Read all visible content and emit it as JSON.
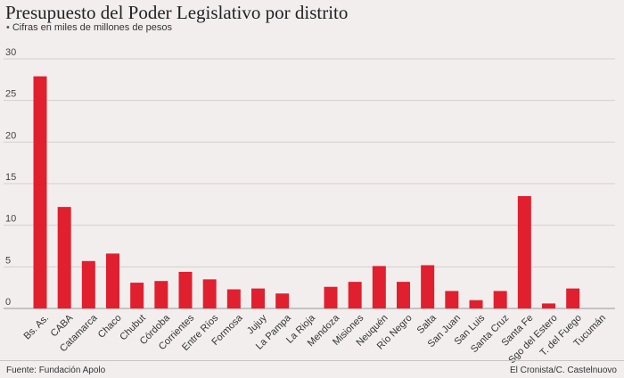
{
  "header": {
    "title": "Presupuesto del Poder Legislativo por distrito",
    "subtitle": "Cifras en miles de millones de pesos"
  },
  "footer": {
    "source": "Fuente: Fundación Apolo",
    "credit": "El Cronista/C. Castelnuovo"
  },
  "colors": {
    "bar": "#e0202f",
    "background": "#f3eeee",
    "grid": "#d4cfcf",
    "axis": "#9a9595"
  },
  "chart_data": {
    "type": "bar",
    "ylim": [
      0,
      30
    ],
    "yticks": [
      0,
      5,
      10,
      15,
      20,
      25,
      30
    ],
    "grid": true,
    "xlabel": "",
    "ylabel": "",
    "categories": [
      "Bs. As.",
      "CABA",
      "Catamarca",
      "Chaco",
      "Chubut",
      "Córdoba",
      "Corrientes",
      "Entre Ríos",
      "Formosa",
      "Jujuy",
      "La Pampa",
      "La Rioja",
      "Mendoza",
      "Misiones",
      "Neuquén",
      "Río Negro",
      "Salta",
      "San Juan",
      "San Luis",
      "Santa Cruz",
      "Santa Fe",
      "Sgo del Estero",
      "T. del Fuego",
      "Tucumán"
    ],
    "values": [
      27.9,
      12.2,
      5.7,
      6.6,
      3.1,
      3.3,
      4.4,
      3.5,
      2.3,
      2.4,
      1.8,
      0,
      2.6,
      3.2,
      5.1,
      3.2,
      5.2,
      2.1,
      1.0,
      2.1,
      13.5,
      0.6,
      2.4,
      0
    ]
  }
}
